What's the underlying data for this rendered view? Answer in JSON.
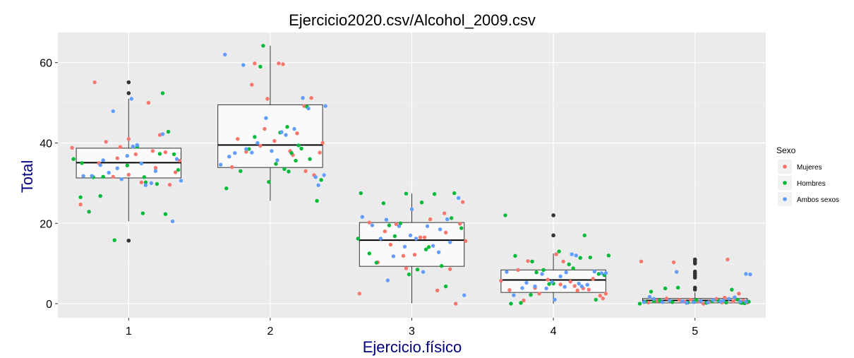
{
  "chart_data": {
    "type": "box",
    "title": "Ejercicio2020.csv/Alcohol_2009.csv",
    "xlabel": "Ejercicio.físico",
    "ylabel": "Total",
    "categories": [
      "1",
      "2",
      "3",
      "4",
      "5"
    ],
    "ylim": [
      -3.5,
      67.5
    ],
    "yticks": [
      0,
      20,
      40,
      60
    ],
    "grid": true,
    "background": "#ebebeb",
    "legend": {
      "title": "Sexo",
      "position": "right",
      "entries": [
        {
          "label": "Mujeres",
          "color": "#F8766D"
        },
        {
          "label": "Hombres",
          "color": "#00BA38"
        },
        {
          "label": "Ambos sexos",
          "color": "#619CFF"
        }
      ]
    },
    "boxes": [
      {
        "category": "1",
        "lower_whisker": 20.5,
        "q1": 31.3,
        "median": 35.1,
        "q3": 38.7,
        "upper_whisker": 51.0,
        "outliers": [
          15.7,
          52.4,
          55.1
        ]
      },
      {
        "category": "2",
        "lower_whisker": 25.6,
        "q1": 33.9,
        "median": 39.5,
        "q3": 49.5,
        "upper_whisker": 64.2,
        "outliers": []
      },
      {
        "category": "3",
        "lower_whisker": 0.1,
        "q1": 9.3,
        "median": 15.8,
        "q3": 20.2,
        "upper_whisker": 27.4,
        "outliers": []
      },
      {
        "category": "4",
        "lower_whisker": 0.0,
        "q1": 2.8,
        "median": 5.9,
        "q3": 8.4,
        "upper_whisker": 12.5,
        "outliers": [
          17.0,
          22.0
        ]
      },
      {
        "category": "5",
        "lower_whisker": 0.0,
        "q1": 0.2,
        "median": 0.8,
        "q3": 1.3,
        "upper_whisker": 2.8,
        "outliers": [
          3.5,
          4.0,
          6.5,
          7.0,
          7.5,
          8.0,
          10.0,
          10.5,
          11.0
        ]
      }
    ],
    "points": [
      {
        "category": "1",
        "series": "Mujeres",
        "jitter": [
          -0.4,
          -0.24,
          -0.21,
          -0.16,
          -0.08,
          -0.06,
          0.0,
          0.0,
          0.05,
          0.14,
          0.17,
          0.22,
          0.26,
          0.33,
          0.36,
          -0.34,
          -0.11,
          0.09,
          0.19,
          0.29
        ],
        "y": [
          38.8,
          55.1,
          35.0,
          40.3,
          36.2,
          39.0,
          41.0,
          32.1,
          37.2,
          50.0,
          38.0,
          42.0,
          37.7,
          32.7,
          35.6,
          24.7,
          31.6,
          30.2,
          33.8,
          29.6
        ]
      },
      {
        "category": "1",
        "series": "Hombres",
        "jitter": [
          -0.39,
          -0.34,
          -0.33,
          -0.28,
          -0.2,
          -0.18,
          -0.1,
          0.06,
          0.1,
          0.12,
          0.2,
          0.24,
          0.26,
          0.28,
          0.32,
          0.35,
          -0.01,
          0.11,
          0.22,
          -0.25
        ],
        "y": [
          36.0,
          26.5,
          35.0,
          22.9,
          26.8,
          31.6,
          15.8,
          39.1,
          22.5,
          30.2,
          29.8,
          52.4,
          22.3,
          42.8,
          37.2,
          33.3,
          34.4,
          31.5,
          37.3,
          31.5
        ]
      },
      {
        "category": "1",
        "series": "Ambos sexos",
        "jitter": [
          -0.32,
          -0.26,
          -0.2,
          -0.11,
          -0.08,
          -0.05,
          -0.01,
          0.02,
          0.03,
          0.06,
          0.12,
          0.16,
          0.19,
          0.24,
          0.31,
          0.34,
          0.37,
          -0.14,
          -0.18,
          0.09
        ],
        "y": [
          31.8,
          31.8,
          34.5,
          47.9,
          33.7,
          31.0,
          36.8,
          51.0,
          39.1,
          39.5,
          29.5,
          30.0,
          33.0,
          42.2,
          20.5,
          36.0,
          30.6,
          32.6,
          35.7,
          34.9
        ]
      },
      {
        "category": "2",
        "series": "Mujeres",
        "jitter": [
          -0.23,
          -0.13,
          -0.11,
          -0.07,
          -0.04,
          -0.02,
          0.06,
          0.09,
          0.16,
          0.24,
          0.29,
          0.31,
          0.25,
          0.19,
          0.14,
          0.03,
          -0.17,
          0.35,
          0.37,
          -0.27
        ],
        "y": [
          41.0,
          54.5,
          59.8,
          39.3,
          43.5,
          51.0,
          59.8,
          59.6,
          37.0,
          49.2,
          51.2,
          32.0,
          33.0,
          42.4,
          38.0,
          40.5,
          37.8,
          37.6,
          40.0,
          34.0
        ]
      },
      {
        "category": "2",
        "series": "Hombres",
        "jitter": [
          -0.31,
          -0.21,
          -0.15,
          -0.07,
          -0.05,
          -0.01,
          0.07,
          0.1,
          0.13,
          0.18,
          0.22,
          0.26,
          0.28,
          0.33,
          0.36,
          0.12,
          -0.11,
          0.04,
          0.2,
          0.15
        ],
        "y": [
          28.7,
          33.0,
          38.5,
          59.0,
          64.2,
          30.3,
          42.6,
          33.5,
          32.9,
          35.6,
          38.6,
          49.0,
          36.0,
          25.6,
          30.8,
          44.0,
          41.5,
          34.8,
          39.4,
          37.5
        ]
      },
      {
        "category": "2",
        "series": "Ambos sexos",
        "jitter": [
          -0.35,
          -0.32,
          -0.25,
          -0.19,
          -0.17,
          -0.13,
          -0.09,
          -0.03,
          0.01,
          0.05,
          0.11,
          0.17,
          0.23,
          0.27,
          0.32,
          0.34,
          0.38,
          0.39,
          0.08,
          -0.29
        ],
        "y": [
          34.6,
          62.0,
          37.5,
          59.4,
          38.5,
          37.6,
          40.0,
          46.2,
          38.0,
          35.7,
          42.0,
          43.5,
          51.2,
          48.6,
          31.5,
          29.5,
          32.0,
          49.2,
          42.7,
          36.6
        ]
      },
      {
        "category": "3",
        "series": "Mujeres",
        "jitter": [
          -0.37,
          -0.3,
          -0.24,
          -0.19,
          -0.11,
          -0.04,
          0.02,
          0.06,
          0.13,
          0.18,
          0.23,
          0.27,
          0.31,
          0.36,
          0.38,
          -0.15,
          0.09,
          0.24,
          -0.06,
          0.34
        ],
        "y": [
          2.5,
          20.2,
          10.3,
          18.0,
          19.8,
          8.8,
          12.2,
          16.5,
          21.0,
          3.3,
          22.5,
          8.6,
          0.0,
          25.3,
          15.6,
          14.7,
          16.5,
          17.7,
          11.9,
          19.9
        ]
      },
      {
        "category": "3",
        "series": "Hombres",
        "jitter": [
          -0.38,
          -0.36,
          -0.3,
          -0.25,
          -0.2,
          -0.16,
          -0.08,
          -0.04,
          -0.02,
          0.04,
          0.07,
          0.12,
          0.16,
          0.21,
          0.24,
          0.28,
          0.3,
          0.35,
          0.1,
          -0.12
        ],
        "y": [
          16.2,
          27.5,
          12.5,
          10.2,
          25.0,
          19.5,
          20.0,
          27.4,
          7.3,
          8.5,
          25.2,
          14.1,
          27.3,
          9.4,
          4.3,
          21.3,
          27.5,
          18.8,
          13.5,
          16.8
        ]
      },
      {
        "category": "3",
        "series": "Ambos sexos",
        "jitter": [
          -0.35,
          -0.28,
          -0.22,
          -0.17,
          -0.13,
          -0.09,
          -0.05,
          0.0,
          0.03,
          0.08,
          0.11,
          0.15,
          0.2,
          0.25,
          0.33,
          0.37,
          0.19,
          -0.01,
          0.27,
          -0.18
        ],
        "y": [
          21.6,
          19.5,
          16.2,
          5.8,
          11.8,
          19.3,
          14.2,
          23.5,
          16.2,
          7.9,
          19.3,
          14.4,
          18.5,
          21.0,
          26.3,
          2.1,
          12.8,
          17.0,
          15.3,
          20.9
        ]
      },
      {
        "category": "4",
        "series": "Mujeres",
        "jitter": [
          -0.37,
          -0.31,
          -0.21,
          -0.18,
          -0.1,
          -0.04,
          0.02,
          0.07,
          0.12,
          0.17,
          0.21,
          0.28,
          0.33,
          0.35,
          0.37,
          -0.25,
          0.05,
          0.25,
          -0.13,
          0.15
        ],
        "y": [
          5.7,
          3.4,
          0.8,
          10.6,
          2.5,
          6.0,
          12.3,
          10.5,
          5.5,
          3.3,
          3.8,
          6.2,
          2.0,
          1.3,
          2.5,
          8.4,
          4.8,
          3.5,
          3.9,
          4.4
        ]
      },
      {
        "category": "4",
        "series": "Hombres",
        "jitter": [
          -0.34,
          -0.3,
          -0.27,
          -0.23,
          -0.15,
          -0.12,
          -0.07,
          -0.03,
          0.0,
          0.04,
          0.11,
          0.14,
          0.19,
          0.22,
          0.26,
          0.3,
          0.32,
          0.36,
          0.39,
          -0.16
        ],
        "y": [
          22.0,
          0.0,
          11.9,
          0.2,
          10.5,
          7.8,
          8.4,
          4.9,
          5.0,
          13.0,
          9.8,
          8.8,
          11.4,
          17.0,
          11.5,
          1.0,
          7.4,
          7.1,
          12.0,
          2.2
        ]
      },
      {
        "category": "4",
        "series": "Ambos sexos",
        "jitter": [
          -0.33,
          -0.28,
          -0.19,
          -0.13,
          -0.08,
          -0.05,
          0.01,
          0.05,
          0.09,
          0.13,
          0.16,
          0.2,
          0.24,
          0.29,
          0.34,
          -0.01,
          0.18,
          0.37,
          -0.22,
          0.08
        ],
        "y": [
          7.9,
          2.1,
          5.2,
          4.3,
          7.4,
          3.8,
          1.0,
          6.8,
          7.8,
          12.3,
          12.0,
          4.3,
          4.7,
          8.0,
          7.6,
          5.4,
          5.0,
          7.6,
          3.9,
          4.2
        ]
      },
      {
        "category": "5",
        "series": "Mujeres",
        "jitter": [
          -0.38,
          -0.33,
          -0.27,
          -0.2,
          -0.15,
          -0.07,
          -0.03,
          0.03,
          0.1,
          0.15,
          0.19,
          0.23,
          0.27,
          0.31,
          0.34,
          0.37,
          0.06,
          -0.11,
          0.21,
          0.29
        ],
        "y": [
          10.5,
          0.3,
          0.8,
          1.3,
          10.3,
          0.5,
          1.0,
          0.6,
          0.4,
          1.2,
          0.3,
          11.0,
          0.6,
          2.5,
          0.8,
          0.3,
          0.0,
          0.9,
          1.5,
          1.1
        ]
      },
      {
        "category": "5",
        "series": "Hombres",
        "jitter": [
          -0.39,
          -0.35,
          -0.31,
          -0.25,
          -0.21,
          -0.16,
          -0.12,
          -0.05,
          0.01,
          0.08,
          0.12,
          0.17,
          0.22,
          0.26,
          0.3,
          0.33,
          0.35,
          0.38,
          -0.29,
          0.32
        ],
        "y": [
          0.0,
          0.5,
          3.0,
          0.8,
          3.8,
          0.4,
          4.0,
          0.3,
          0.9,
          0.2,
          0.6,
          0.7,
          0.3,
          3.5,
          1.0,
          0.2,
          0.1,
          0.5,
          0.6,
          0.3
        ]
      },
      {
        "category": "5",
        "series": "Ambos sexos",
        "jitter": [
          -0.36,
          -0.32,
          -0.29,
          -0.23,
          -0.18,
          -0.13,
          -0.09,
          -0.01,
          0.04,
          0.09,
          0.13,
          0.18,
          0.24,
          0.28,
          0.32,
          0.36,
          0.39,
          -0.06,
          0.2,
          0.36
        ],
        "y": [
          0.4,
          1.7,
          1.2,
          0.4,
          0.8,
          7.9,
          0.6,
          0.4,
          0.7,
          0.3,
          0.9,
          0.5,
          1.2,
          1.6,
          0.5,
          7.4,
          7.3,
          0.2,
          0.8,
          0.5
        ]
      }
    ]
  }
}
